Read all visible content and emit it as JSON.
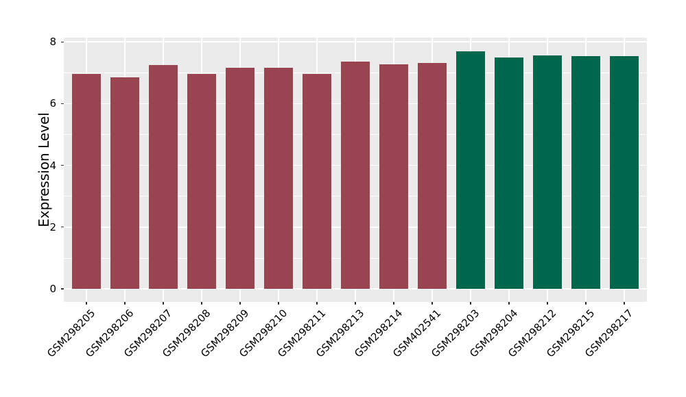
{
  "chart_data": {
    "type": "bar",
    "title": "",
    "xlabel": "",
    "ylabel": "Expression Level",
    "ylim": [
      0,
      8
    ],
    "yticks": [
      0,
      2,
      4,
      6,
      8
    ],
    "yticks_minor": [
      1,
      3,
      5,
      7
    ],
    "grid": "on",
    "legend": "none",
    "colors": {
      "panel_background": "#EBEBEB",
      "gridline": "#FFFFFF",
      "tick_mark": "#333333",
      "text": "#000000",
      "group_1_bar": "#9A4351",
      "group_2_bar": "#00674D"
    },
    "categories": [
      "GSM298205",
      "GSM298206",
      "GSM298207",
      "GSM298208",
      "GSM298209",
      "GSM298210",
      "GSM298211",
      "GSM298213",
      "GSM298214",
      "GSM402541",
      "GSM298203",
      "GSM298204",
      "GSM298212",
      "GSM298215",
      "GSM298217"
    ],
    "bars": [
      {
        "label": "GSM298205",
        "value": 6.96,
        "color": "#9A4351"
      },
      {
        "label": "GSM298206",
        "value": 6.85,
        "color": "#9A4351"
      },
      {
        "label": "GSM298207",
        "value": 7.24,
        "color": "#9A4351"
      },
      {
        "label": "GSM298208",
        "value": 6.97,
        "color": "#9A4351"
      },
      {
        "label": "GSM298209",
        "value": 7.17,
        "color": "#9A4351"
      },
      {
        "label": "GSM298210",
        "value": 7.16,
        "color": "#9A4351"
      },
      {
        "label": "GSM298211",
        "value": 6.97,
        "color": "#9A4351"
      },
      {
        "label": "GSM298213",
        "value": 7.37,
        "color": "#9A4351"
      },
      {
        "label": "GSM298214",
        "value": 7.28,
        "color": "#9A4351"
      },
      {
        "label": "GSM402541",
        "value": 7.31,
        "color": "#9A4351"
      },
      {
        "label": "GSM298203",
        "value": 7.7,
        "color": "#00674D"
      },
      {
        "label": "GSM298204",
        "value": 7.49,
        "color": "#00674D"
      },
      {
        "label": "GSM298212",
        "value": 7.57,
        "color": "#00674D"
      },
      {
        "label": "GSM298215",
        "value": 7.54,
        "color": "#00674D"
      },
      {
        "label": "GSM298217",
        "value": 7.53,
        "color": "#00674D"
      }
    ]
  }
}
